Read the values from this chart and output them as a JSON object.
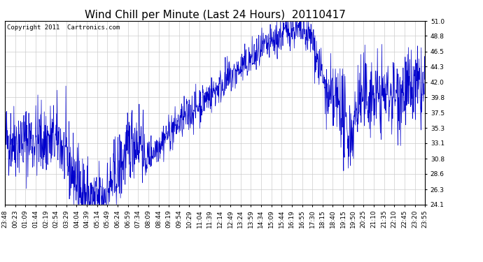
{
  "title": "Wind Chill per Minute (Last 24 Hours)  20110417",
  "copyright_text": "Copyright 2011  Cartronics.com",
  "line_color": "#0000cc",
  "background_color": "#ffffff",
  "grid_color": "#cccccc",
  "ylim": [
    24.1,
    51.0
  ],
  "yticks": [
    24.1,
    26.3,
    28.6,
    30.8,
    33.1,
    35.3,
    37.5,
    39.8,
    42.0,
    44.3,
    46.5,
    48.8,
    51.0
  ],
  "xtick_labels": [
    "23:48",
    "00:23",
    "01:09",
    "01:44",
    "02:19",
    "02:54",
    "03:29",
    "04:04",
    "04:39",
    "05:14",
    "05:49",
    "06:24",
    "06:59",
    "07:34",
    "08:09",
    "08:44",
    "09:19",
    "09:54",
    "10:29",
    "11:04",
    "11:39",
    "12:14",
    "12:49",
    "13:24",
    "13:59",
    "14:34",
    "15:09",
    "15:44",
    "16:19",
    "16:55",
    "17:30",
    "18:15",
    "18:40",
    "19:15",
    "19:50",
    "20:25",
    "21:10",
    "21:35",
    "22:10",
    "22:45",
    "23:20",
    "23:55"
  ],
  "title_fontsize": 11,
  "tick_fontsize": 6.5,
  "copyright_fontsize": 6.5
}
